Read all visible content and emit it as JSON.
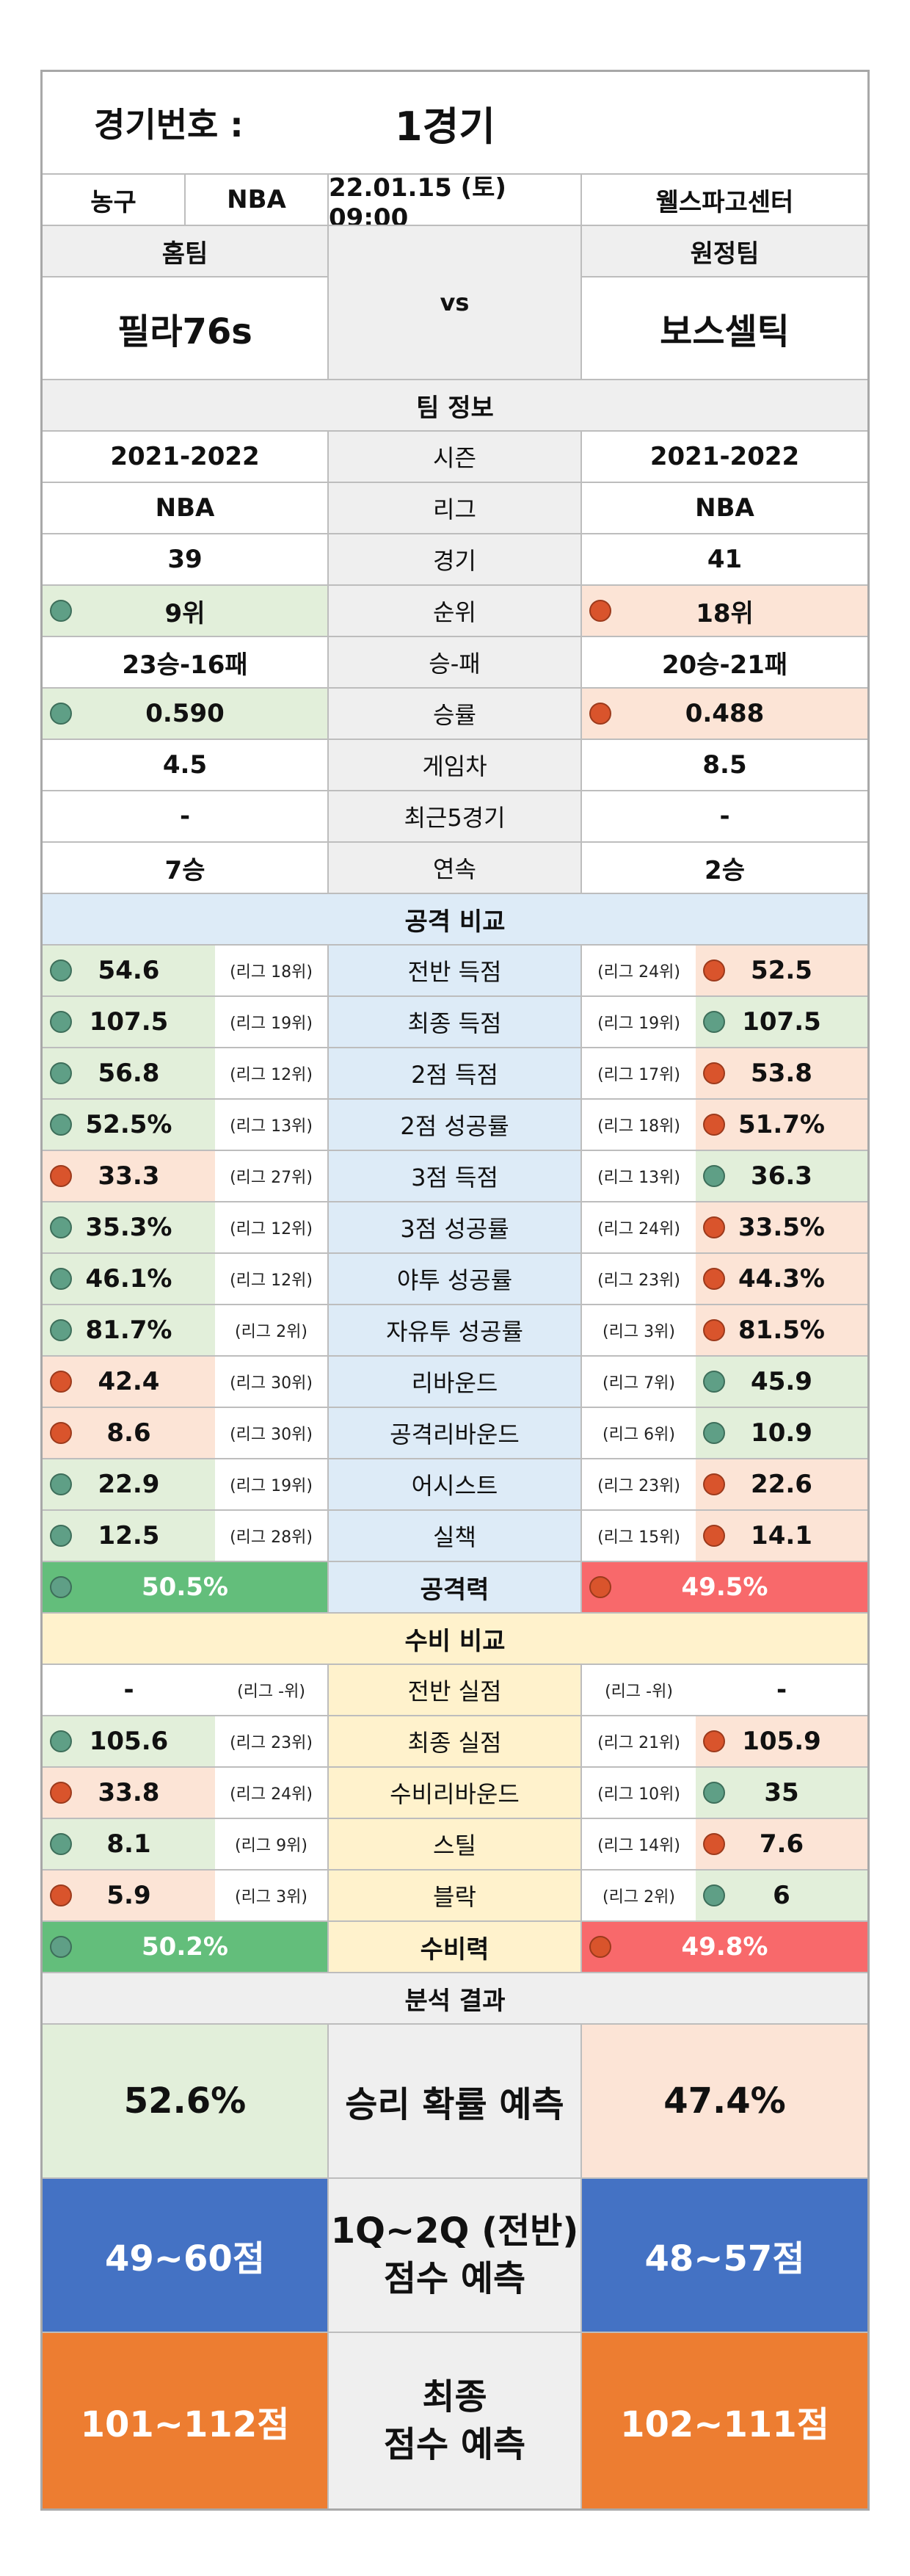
{
  "header": {
    "match_label": "경기번호 :",
    "match_value": "1경기"
  },
  "info": {
    "sport": "농구",
    "league": "NBA",
    "datetime": "22.01.15 (토) 09:00",
    "venue": "웰스파고센터"
  },
  "teams": {
    "home_label": "홈팀",
    "away_label": "원정팀",
    "vs": "vs",
    "home_name": "필라76s",
    "away_name": "보스셀틱"
  },
  "team_info": {
    "title": "팀 정보",
    "rows": [
      {
        "label": "시즌",
        "home": "2021-2022",
        "away": "2021-2022"
      },
      {
        "label": "리그",
        "home": "NBA",
        "away": "NBA"
      },
      {
        "label": "경기",
        "home": "39",
        "away": "41"
      },
      {
        "label": "순위",
        "home": "9위",
        "away": "18위",
        "home_marker": "green",
        "away_marker": "red"
      },
      {
        "label": "승-패",
        "home": "23승-16패",
        "away": "20승-21패"
      },
      {
        "label": "승률",
        "home": "0.590",
        "away": "0.488",
        "home_marker": "green",
        "away_marker": "red"
      },
      {
        "label": "게임차",
        "home": "4.5",
        "away": "8.5"
      },
      {
        "label": "최근5경기",
        "home": "-",
        "away": "-"
      },
      {
        "label": "연속",
        "home": "7승",
        "away": "2승"
      }
    ]
  },
  "attack": {
    "title": "공격 비교",
    "rows": [
      {
        "label": "전반 득점",
        "home": "54.6",
        "home_rank": "(리그 18위)",
        "away": "52.5",
        "away_rank": "(리그 24위)",
        "home_marker": "green",
        "away_marker": "red"
      },
      {
        "label": "최종 득점",
        "home": "107.5",
        "home_rank": "(리그 19위)",
        "away": "107.5",
        "away_rank": "(리그 19위)",
        "home_marker": "green",
        "away_marker": "green"
      },
      {
        "label": "2점 득점",
        "home": "56.8",
        "home_rank": "(리그 12위)",
        "away": "53.8",
        "away_rank": "(리그 17위)",
        "home_marker": "green",
        "away_marker": "red"
      },
      {
        "label": "2점 성공률",
        "home": "52.5%",
        "home_rank": "(리그 13위)",
        "away": "51.7%",
        "away_rank": "(리그 18위)",
        "home_marker": "green",
        "away_marker": "red"
      },
      {
        "label": "3점 득점",
        "home": "33.3",
        "home_rank": "(리그 27위)",
        "away": "36.3",
        "away_rank": "(리그 13위)",
        "home_marker": "red",
        "away_marker": "green"
      },
      {
        "label": "3점 성공률",
        "home": "35.3%",
        "home_rank": "(리그 12위)",
        "away": "33.5%",
        "away_rank": "(리그 24위)",
        "home_marker": "green",
        "away_marker": "red"
      },
      {
        "label": "야투 성공률",
        "home": "46.1%",
        "home_rank": "(리그 12위)",
        "away": "44.3%",
        "away_rank": "(리그 23위)",
        "home_marker": "green",
        "away_marker": "red"
      },
      {
        "label": "자유투 성공률",
        "home": "81.7%",
        "home_rank": "(리그 2위)",
        "away": "81.5%",
        "away_rank": "(리그 3위)",
        "home_marker": "green",
        "away_marker": "red"
      },
      {
        "label": "리바운드",
        "home": "42.4",
        "home_rank": "(리그 30위)",
        "away": "45.9",
        "away_rank": "(리그 7위)",
        "home_marker": "red",
        "away_marker": "green"
      },
      {
        "label": "공격리바운드",
        "home": "8.6",
        "home_rank": "(리그 30위)",
        "away": "10.9",
        "away_rank": "(리그 6위)",
        "home_marker": "red",
        "away_marker": "green"
      },
      {
        "label": "어시스트",
        "home": "22.9",
        "home_rank": "(리그 19위)",
        "away": "22.6",
        "away_rank": "(리그 23위)",
        "home_marker": "green",
        "away_marker": "red"
      },
      {
        "label": "실책",
        "home": "12.5",
        "home_rank": "(리그 28위)",
        "away": "14.1",
        "away_rank": "(리그 15위)",
        "home_marker": "green",
        "away_marker": "red"
      }
    ],
    "power": {
      "label": "공격력",
      "home": "50.5%",
      "away": "49.5%"
    }
  },
  "defense": {
    "title": "수비 비교",
    "rows": [
      {
        "label": "전반 실점",
        "home": "-",
        "home_rank": "(리그 -위)",
        "away": "-",
        "away_rank": "(리그 -위)",
        "home_marker": "none",
        "away_marker": "none"
      },
      {
        "label": "최종 실점",
        "home": "105.6",
        "home_rank": "(리그 23위)",
        "away": "105.9",
        "away_rank": "(리그 21위)",
        "home_marker": "green",
        "away_marker": "red"
      },
      {
        "label": "수비리바운드",
        "home": "33.8",
        "home_rank": "(리그 24위)",
        "away": "35",
        "away_rank": "(리그 10위)",
        "home_marker": "red",
        "away_marker": "green"
      },
      {
        "label": "스틸",
        "home": "8.1",
        "home_rank": "(리그 9위)",
        "away": "7.6",
        "away_rank": "(리그 14위)",
        "home_marker": "green",
        "away_marker": "red"
      },
      {
        "label": "블락",
        "home": "5.9",
        "home_rank": "(리그 3위)",
        "away": "6",
        "away_rank": "(리그 2위)",
        "home_marker": "red",
        "away_marker": "green"
      }
    ],
    "power": {
      "label": "수비력",
      "home": "50.2%",
      "away": "49.8%"
    }
  },
  "analysis": {
    "title": "분석 결과",
    "win": {
      "label": "승리 확률 예측",
      "home": "52.6%",
      "away": "47.4%"
    },
    "first_half": {
      "label_line1": "1Q~2Q (전반)",
      "label_line2": "점수 예측",
      "home": "49~60점",
      "away": "48~57점"
    },
    "final": {
      "label_line1": "최종",
      "label_line2": "점수 예측",
      "home": "101~112점",
      "away": "102~111점"
    }
  },
  "colors": {
    "good": "#e2efda",
    "bad": "#fce4d6",
    "attack_bg": "#ddebf7",
    "defense_bg": "#fff2cc",
    "power_good": "#63be7b",
    "power_bad": "#f8696b",
    "half_pred": "#4472c4",
    "final_pred": "#ed7d31"
  }
}
